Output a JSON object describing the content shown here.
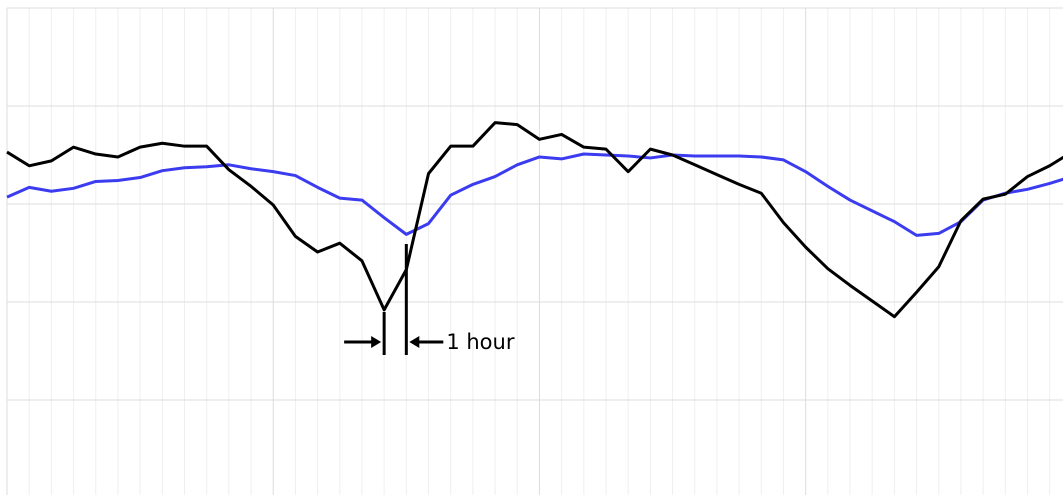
{
  "chart_data": {
    "type": "line",
    "x": [
      0,
      1,
      2,
      3,
      4,
      5,
      6,
      7,
      8,
      9,
      10,
      11,
      12,
      13,
      14,
      15,
      16,
      17,
      18,
      19,
      20,
      21,
      22,
      23,
      24,
      25,
      26,
      27,
      28,
      29,
      30,
      31,
      32,
      33,
      34,
      35,
      36,
      37,
      38,
      39,
      40,
      41,
      42,
      43,
      44,
      45,
      46,
      47,
      48
    ],
    "series": [
      {
        "color": "#000000",
        "values": [
          3.53,
          3.39,
          3.44,
          3.58,
          3.51,
          3.48,
          3.58,
          3.62,
          3.59,
          3.59,
          3.35,
          3.18,
          2.99,
          2.67,
          2.51,
          2.6,
          2.42,
          1.92,
          2.33,
          3.31,
          3.59,
          3.59,
          3.83,
          3.81,
          3.66,
          3.71,
          3.58,
          3.56,
          3.33,
          3.56,
          3.5,
          3.4,
          3.3,
          3.2,
          3.11,
          2.81,
          2.56,
          2.34,
          2.17,
          2.01,
          1.85,
          2.1,
          2.36,
          2.83,
          3.05,
          3.1,
          3.28,
          3.39,
          3.53
        ]
      },
      {
        "color": "#3b3bf0",
        "values": [
          3.07,
          3.17,
          3.13,
          3.16,
          3.23,
          3.24,
          3.27,
          3.34,
          3.37,
          3.38,
          3.4,
          3.36,
          3.33,
          3.29,
          3.17,
          3.06,
          3.04,
          2.86,
          2.69,
          2.8,
          3.09,
          3.2,
          3.28,
          3.4,
          3.48,
          3.46,
          3.51,
          3.5,
          3.49,
          3.47,
          3.5,
          3.49,
          3.49,
          3.49,
          3.48,
          3.45,
          3.33,
          3.18,
          3.04,
          2.93,
          2.82,
          2.68,
          2.7,
          2.82,
          3.04,
          3.11,
          3.15,
          3.21,
          3.28
        ]
      }
    ],
    "xlim": [
      0,
      47.6
    ],
    "ylim": [
      0,
      5
    ],
    "xticks": [
      0,
      12,
      24,
      36
    ],
    "xticks_minor": [
      1,
      2,
      3,
      4,
      5,
      6,
      7,
      8,
      9,
      10,
      11,
      13,
      14,
      15,
      16,
      17,
      18,
      19,
      20,
      21,
      22,
      23,
      25,
      26,
      27,
      28,
      29,
      30,
      31,
      32,
      33,
      34,
      35,
      37,
      38,
      39,
      40,
      41,
      42,
      43,
      44,
      45,
      46,
      47
    ],
    "yticks": [
      1,
      2,
      3,
      4,
      5
    ],
    "grid": true,
    "annotation": {
      "text": "1 hour",
      "x_start": 17,
      "x_end": 18
    }
  }
}
